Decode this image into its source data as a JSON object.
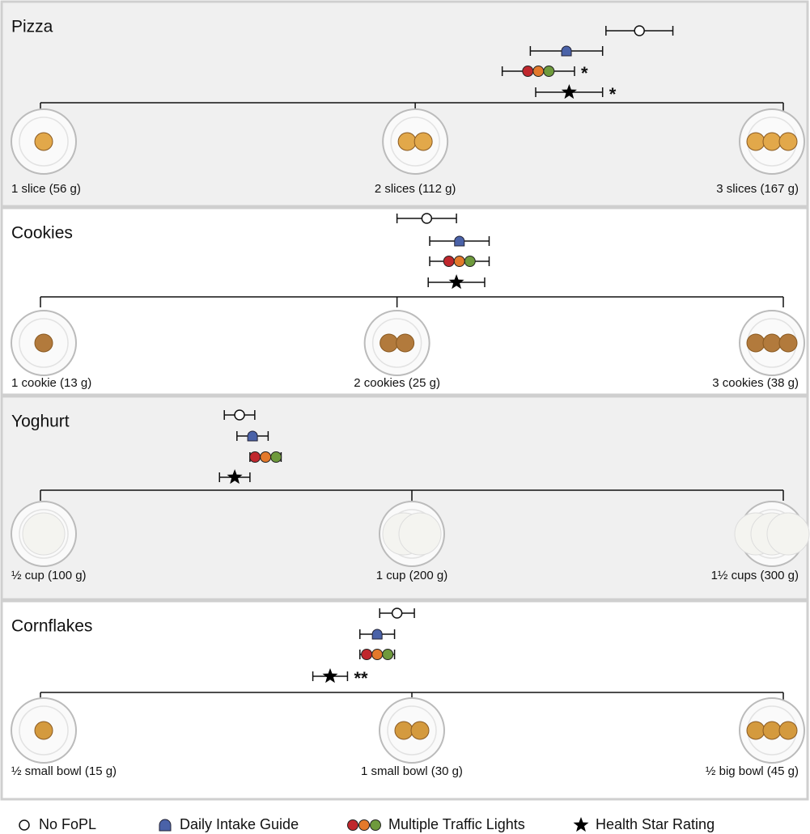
{
  "chart_data": {
    "type": "dot",
    "panels": [
      {
        "title": "Pizza",
        "xlim": [
          56,
          167
        ],
        "xticks": [
          {
            "value": 56,
            "label": "1 slice (56 g)"
          },
          {
            "value": 112,
            "label": "2 slices (112 g)"
          },
          {
            "value": 167,
            "label": "3 slices (167 g)"
          }
        ]
      },
      {
        "title": "Cookies",
        "xlim": [
          13,
          38
        ],
        "xticks": [
          {
            "value": 13,
            "label": "1 cookie (13 g)"
          },
          {
            "value": 25,
            "label": "2 cookies (25 g)"
          },
          {
            "value": 38,
            "label": "3 cookies (38 g)"
          }
        ]
      },
      {
        "title": "Yoghurt",
        "xlim": [
          100,
          300
        ],
        "xticks": [
          {
            "value": 100,
            "label": "½ cup (100 g)"
          },
          {
            "value": 200,
            "label": "1 cup (200 g)"
          },
          {
            "value": 300,
            "label": "1½ cups (300 g)"
          }
        ]
      },
      {
        "title": "Cornflakes",
        "xlim": [
          15,
          45
        ],
        "xticks": [
          {
            "value": 15,
            "label": "½ small bowl (15 g)"
          },
          {
            "value": 30,
            "label": "1 small bowl (30 g)"
          },
          {
            "value": 45,
            "label": "½ big bowl (45 g)"
          }
        ]
      }
    ],
    "series": [
      {
        "name": "No FoPL",
        "marker": "circle",
        "color": "#ffffff",
        "values": [
          145.5,
          26.0,
          153.6,
          29.4
        ],
        "errors": [
          5.0,
          1.0,
          4.1,
          0.7
        ],
        "annotations": [
          null,
          null,
          null,
          null
        ]
      },
      {
        "name": "Daily Intake Guide",
        "marker": "dome",
        "color": "#4a62a8",
        "values": [
          134.6,
          27.1,
          157.1,
          28.6
        ],
        "errors": [
          5.4,
          1.0,
          4.2,
          0.7
        ],
        "annotations": [
          null,
          null,
          null,
          null
        ]
      },
      {
        "name": "Multiple Traffic Lights",
        "marker": "lights",
        "colors": [
          "#c0272d",
          "#e3792b",
          "#6e9a3c"
        ],
        "values": [
          130.4,
          27.1,
          160.6,
          28.6
        ],
        "errors": [
          5.4,
          1.0,
          4.2,
          0.7
        ],
        "annotations": [
          "*",
          null,
          null,
          null
        ]
      },
      {
        "name": "Health Star Rating",
        "marker": "star",
        "color": "#000000",
        "values": [
          135.0,
          27.0,
          152.3,
          26.7
        ],
        "errors": [
          5.0,
          0.95,
          4.1,
          0.7
        ],
        "annotations": [
          "*",
          null,
          null,
          "**"
        ]
      }
    ]
  }
}
